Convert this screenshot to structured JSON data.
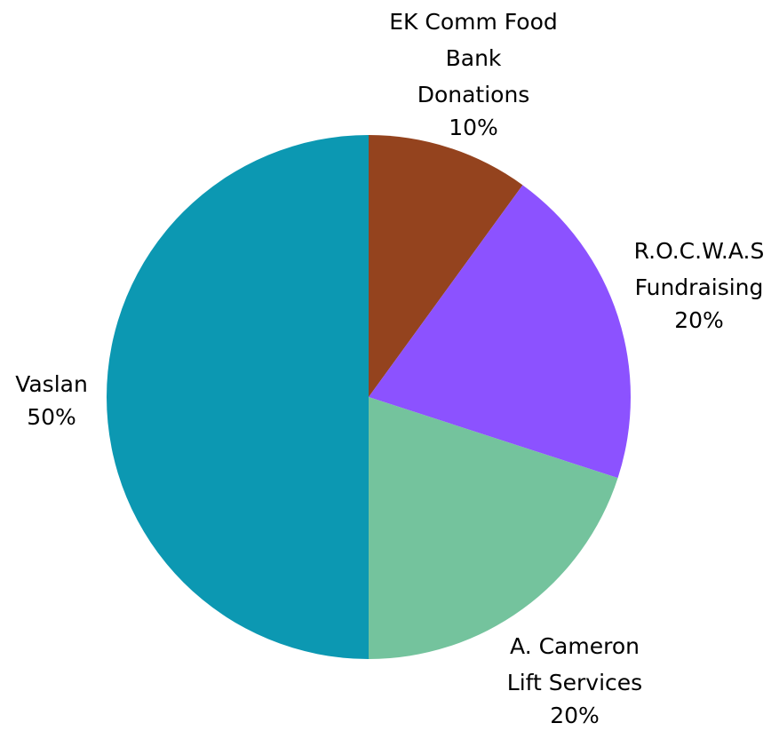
{
  "chart_data": {
    "type": "pie",
    "categories": [
      "EK Comm Food\nBank\nDonations",
      "R.O.C.W.A.S\nFundraising",
      "A. Cameron\nLift Services",
      "Vaslan"
    ],
    "values": [
      10,
      20,
      20,
      50
    ],
    "value_labels": [
      "10%",
      "20%",
      "20%",
      "50%"
    ],
    "colors": [
      "#94431e",
      "#8c52ff",
      "#74c39d",
      "#0c98b2"
    ]
  }
}
